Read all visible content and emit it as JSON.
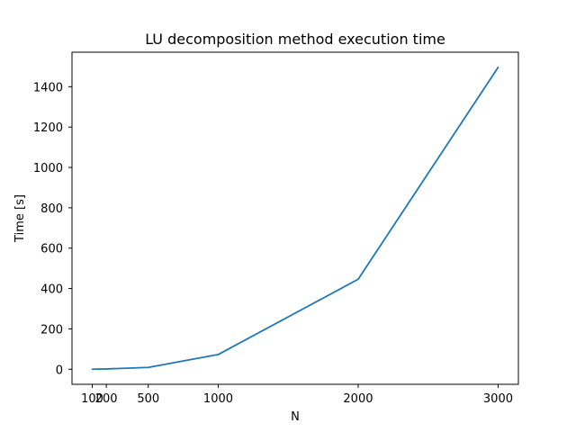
{
  "chart_data": {
    "type": "line",
    "title": "LU decomposition method execution time",
    "xlabel": "N",
    "ylabel": "Time [s]",
    "x": [
      100,
      200,
      500,
      1000,
      2000,
      3000
    ],
    "series": [
      {
        "values": [
          0.2,
          1.5,
          9,
          73,
          446,
          1496
        ],
        "color": "#1f77b4"
      }
    ],
    "xticks": [
      100,
      200,
      500,
      1000,
      2000,
      3000
    ],
    "xtick_labels": [
      "100",
      "200",
      "500",
      "1000",
      "2000",
      "3000"
    ],
    "yticks": [
      0,
      200,
      400,
      600,
      800,
      1000,
      1200,
      1400
    ],
    "ytick_labels": [
      "0",
      "200",
      "400",
      "600",
      "800",
      "1000",
      "1200",
      "1400"
    ],
    "xlim": [
      -45,
      3145
    ],
    "ylim": [
      -74.6,
      1571
    ],
    "grid": false,
    "legend": "none"
  }
}
